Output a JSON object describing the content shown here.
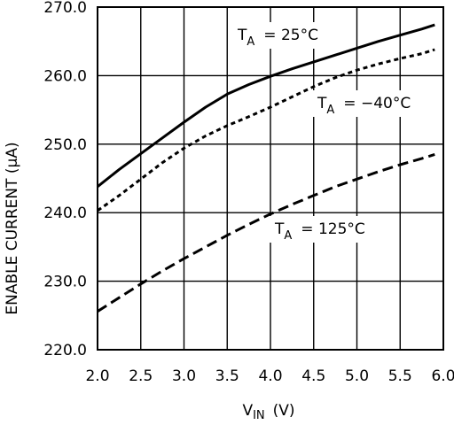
{
  "chart_data": {
    "type": "line",
    "title": "",
    "xlabel": "V",
    "xlabel_sub": "IN",
    "xlabel_unit": "(V)",
    "ylabel": "ENABLE CURRENT (μA)",
    "xlim": [
      2.0,
      6.0
    ],
    "ylim": [
      220.0,
      270.0
    ],
    "x_ticks": [
      "2.0",
      "2.5",
      "3.0",
      "3.5",
      "4.0",
      "4.5",
      "5.0",
      "5.5",
      "6.0"
    ],
    "y_ticks": [
      "220.0",
      "230.0",
      "240.0",
      "250.0",
      "260.0",
      "270.0"
    ],
    "x_tick_values": [
      2.0,
      2.5,
      3.0,
      3.5,
      4.0,
      4.5,
      5.0,
      5.5,
      6.0
    ],
    "y_tick_values": [
      220,
      230,
      240,
      250,
      260,
      270
    ],
    "grid": true,
    "series": [
      {
        "label_text": "T",
        "label_sub": "A",
        "label_value": "= 25°C",
        "style": "solid",
        "x": [
          2.0,
          2.25,
          2.5,
          2.75,
          3.0,
          3.25,
          3.5,
          3.75,
          4.0,
          4.25,
          4.5,
          4.75,
          5.0,
          5.25,
          5.5,
          5.75,
          5.9
        ],
        "y": [
          243.8,
          246.3,
          248.6,
          250.9,
          253.2,
          255.4,
          257.3,
          258.7,
          259.9,
          261.0,
          262.0,
          263.0,
          264.0,
          265.0,
          265.9,
          266.8,
          267.4
        ]
      },
      {
        "label_text": "T",
        "label_sub": "A",
        "label_value": "= −40°C",
        "style": "dotted",
        "x": [
          2.0,
          2.25,
          2.5,
          2.75,
          3.0,
          3.25,
          3.5,
          3.75,
          4.0,
          4.25,
          4.5,
          4.75,
          5.0,
          5.25,
          5.5,
          5.75,
          5.9
        ],
        "y": [
          240.3,
          242.5,
          244.9,
          247.3,
          249.4,
          251.2,
          252.7,
          254.0,
          255.4,
          256.9,
          258.4,
          259.7,
          260.8,
          261.7,
          262.5,
          263.2,
          263.8
        ]
      },
      {
        "label_text": "T",
        "label_sub": "A",
        "label_value": "= 125°C",
        "style": "dashed",
        "x": [
          2.0,
          2.25,
          2.5,
          2.75,
          3.0,
          3.25,
          3.5,
          3.75,
          4.0,
          4.25,
          4.5,
          4.75,
          5.0,
          5.25,
          5.5,
          5.75,
          5.9
        ],
        "y": [
          225.6,
          227.6,
          229.6,
          231.5,
          233.3,
          235.0,
          236.7,
          238.3,
          239.8,
          241.2,
          242.5,
          243.8,
          244.9,
          246.0,
          247.0,
          247.9,
          248.5
        ]
      }
    ]
  }
}
